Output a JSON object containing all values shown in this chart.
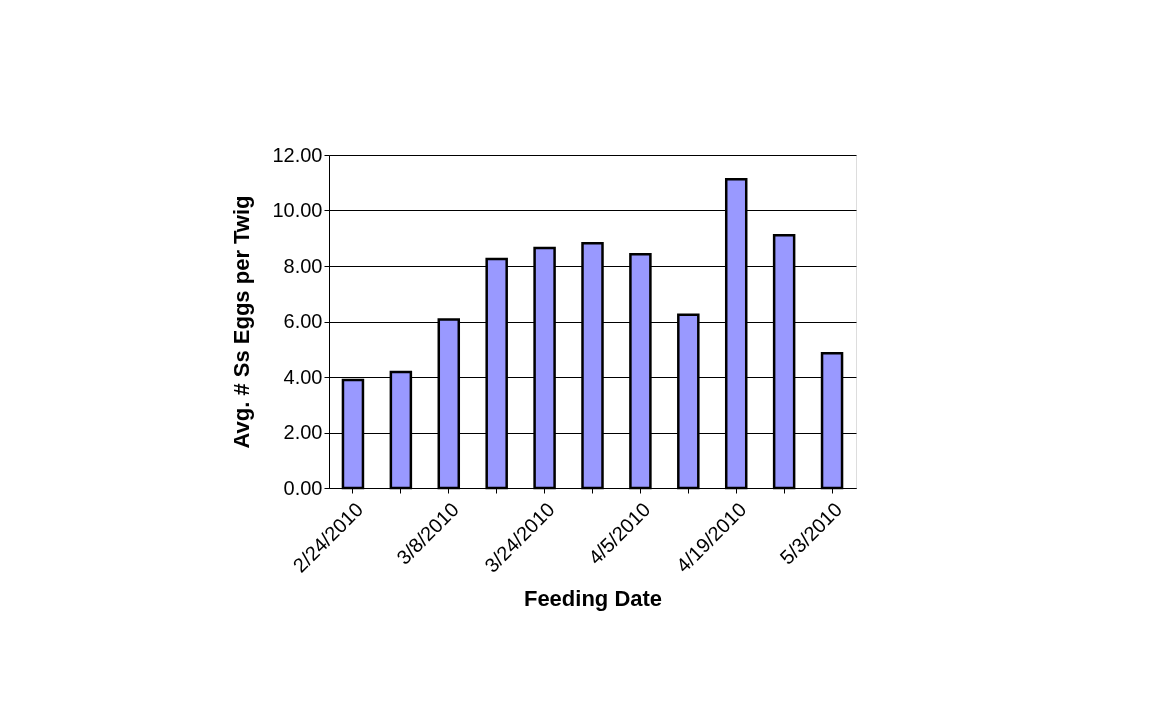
{
  "chart_data": {
    "type": "bar",
    "xlabel": "Feeding Date",
    "ylabel": "Avg. # Ss Eggs per Twig",
    "categories": [
      "2/24/2010",
      null,
      "3/8/2010",
      null,
      "3/24/2010",
      null,
      "4/5/2010",
      null,
      "4/19/2010",
      null,
      "5/3/2010"
    ],
    "values": [
      3.89,
      4.18,
      6.07,
      8.25,
      8.65,
      8.82,
      8.42,
      6.24,
      11.13,
      9.11,
      4.86
    ],
    "color": "#9999ff",
    "ylim": [
      0,
      12
    ],
    "yticks": [
      {
        "value": 0,
        "label": "0.00"
      },
      {
        "value": 2,
        "label": "2.00"
      },
      {
        "value": 4,
        "label": "4.00"
      },
      {
        "value": 6,
        "label": "6.00"
      },
      {
        "value": 8,
        "label": "8.00"
      },
      {
        "value": 10,
        "label": "10.00"
      },
      {
        "value": 12,
        "label": "12.00"
      }
    ],
    "grid": "y",
    "legend": false
  }
}
